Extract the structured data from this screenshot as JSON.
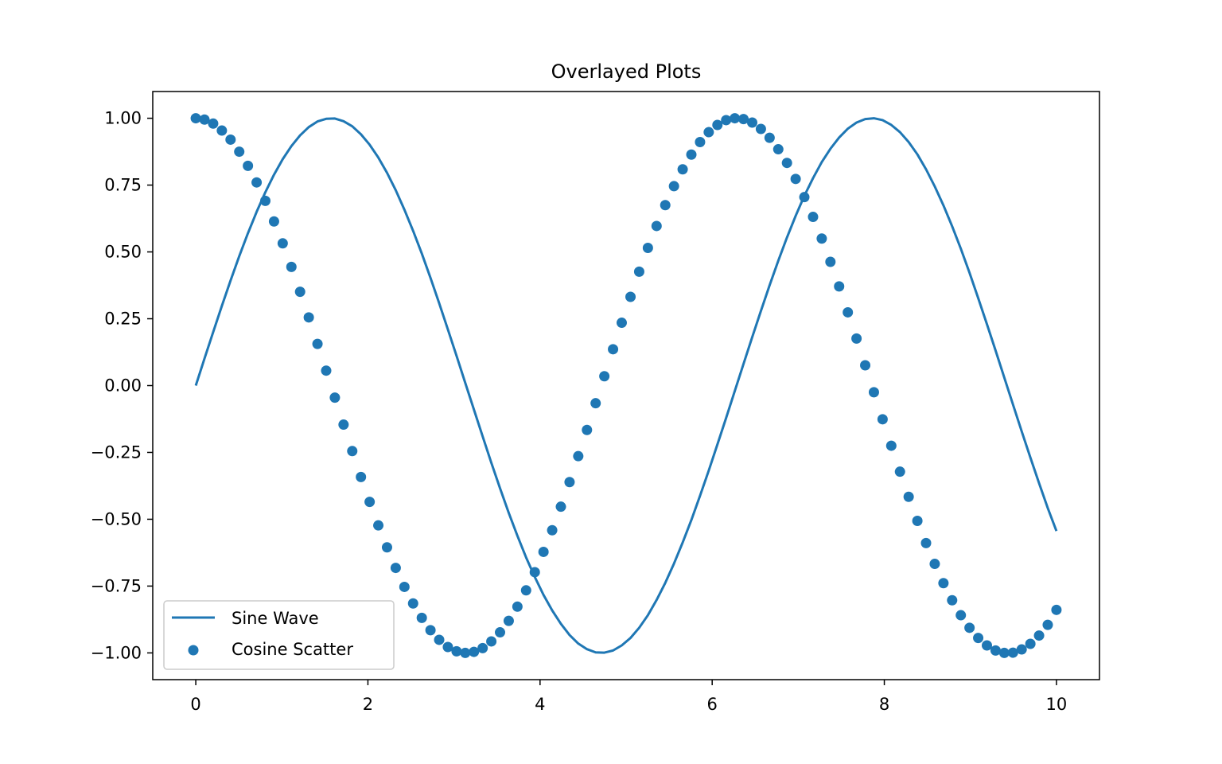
{
  "chart_data": {
    "type": "line",
    "title": "Overlayed Plots",
    "xlabel": "",
    "ylabel": "",
    "xlim": [
      -0.5,
      10.5
    ],
    "ylim": [
      -1.1,
      1.1
    ],
    "x_ticks": [
      0,
      2,
      4,
      6,
      8,
      10
    ],
    "x_tick_labels": [
      "0",
      "2",
      "4",
      "6",
      "8",
      "10"
    ],
    "y_ticks": [
      1.0,
      0.75,
      0.5,
      0.25,
      0.0,
      -0.25,
      -0.5,
      -0.75,
      -1.0
    ],
    "y_tick_labels": [
      "1.00",
      "0.75",
      "0.50",
      "0.25",
      "0.00",
      "−0.25",
      "−0.50",
      "−0.75",
      "−1.00"
    ],
    "grid": false,
    "legend_position": "lower-left",
    "series": [
      {
        "name": "Sine Wave",
        "kind": "line",
        "color": "#1f77b4",
        "x": [
          0.0,
          0.101,
          0.202,
          0.303,
          0.404,
          0.505,
          0.606,
          0.707,
          0.808,
          0.909,
          1.01,
          1.111,
          1.212,
          1.313,
          1.414,
          1.515,
          1.616,
          1.717,
          1.818,
          1.919,
          2.02,
          2.121,
          2.222,
          2.323,
          2.424,
          2.525,
          2.626,
          2.727,
          2.828,
          2.929,
          3.03,
          3.131,
          3.232,
          3.333,
          3.434,
          3.535,
          3.636,
          3.737,
          3.838,
          3.939,
          4.04,
          4.141,
          4.242,
          4.343,
          4.444,
          4.545,
          4.646,
          4.747,
          4.848,
          4.949,
          5.051,
          5.152,
          5.253,
          5.354,
          5.455,
          5.556,
          5.657,
          5.758,
          5.859,
          5.96,
          6.061,
          6.162,
          6.263,
          6.364,
          6.465,
          6.566,
          6.667,
          6.768,
          6.869,
          6.97,
          7.071,
          7.172,
          7.273,
          7.374,
          7.475,
          7.576,
          7.677,
          7.778,
          7.879,
          7.98,
          8.081,
          8.182,
          8.283,
          8.384,
          8.485,
          8.586,
          8.687,
          8.788,
          8.889,
          8.99,
          9.091,
          9.192,
          9.293,
          9.394,
          9.495,
          9.596,
          9.697,
          9.798,
          9.899,
          10.0
        ],
        "y": [
          0.0,
          0.101,
          0.2,
          0.298,
          0.393,
          0.484,
          0.57,
          0.65,
          0.723,
          0.789,
          0.847,
          0.896,
          0.936,
          0.967,
          0.988,
          0.998,
          0.999,
          0.989,
          0.97,
          0.94,
          0.901,
          0.853,
          0.796,
          0.731,
          0.658,
          0.579,
          0.494,
          0.403,
          0.308,
          0.21,
          0.111,
          0.01,
          -0.09,
          -0.19,
          -0.289,
          -0.384,
          -0.476,
          -0.562,
          -0.643,
          -0.716,
          -0.783,
          -0.841,
          -0.891,
          -0.933,
          -0.965,
          -0.986,
          -0.998,
          -0.999,
          -0.991,
          -0.972,
          -0.944,
          -0.906,
          -0.859,
          -0.802,
          -0.738,
          -0.666,
          -0.587,
          -0.503,
          -0.412,
          -0.318,
          -0.22,
          -0.121,
          -0.02,
          0.081,
          0.181,
          0.279,
          0.375,
          0.467,
          0.554,
          0.635,
          0.71,
          0.776,
          0.836,
          0.886,
          0.928,
          0.961,
          0.984,
          0.997,
          1.0,
          0.993,
          0.975,
          0.948,
          0.911,
          0.865,
          0.809,
          0.745,
          0.674,
          0.596,
          0.512,
          0.422,
          0.327,
          0.23,
          0.131,
          0.03,
          -0.071,
          -0.171,
          -0.269,
          -0.365,
          -0.458,
          -0.544
        ]
      },
      {
        "name": "Cosine Scatter",
        "kind": "scatter",
        "color": "#1f77b4",
        "x": [
          0.0,
          0.101,
          0.202,
          0.303,
          0.404,
          0.505,
          0.606,
          0.707,
          0.808,
          0.909,
          1.01,
          1.111,
          1.212,
          1.313,
          1.414,
          1.515,
          1.616,
          1.717,
          1.818,
          1.919,
          2.02,
          2.121,
          2.222,
          2.323,
          2.424,
          2.525,
          2.626,
          2.727,
          2.828,
          2.929,
          3.03,
          3.131,
          3.232,
          3.333,
          3.434,
          3.535,
          3.636,
          3.737,
          3.838,
          3.939,
          4.04,
          4.141,
          4.242,
          4.343,
          4.444,
          4.545,
          4.646,
          4.747,
          4.848,
          4.949,
          5.051,
          5.152,
          5.253,
          5.354,
          5.455,
          5.556,
          5.657,
          5.758,
          5.859,
          5.96,
          6.061,
          6.162,
          6.263,
          6.364,
          6.465,
          6.566,
          6.667,
          6.768,
          6.869,
          6.97,
          7.071,
          7.172,
          7.273,
          7.374,
          7.475,
          7.576,
          7.677,
          7.778,
          7.879,
          7.98,
          8.081,
          8.182,
          8.283,
          8.384,
          8.485,
          8.586,
          8.687,
          8.788,
          8.889,
          8.99,
          9.091,
          9.192,
          9.293,
          9.394,
          9.495,
          9.596,
          9.697,
          9.798,
          9.899,
          10.0
        ],
        "y": [
          1.0,
          0.995,
          0.98,
          0.954,
          0.92,
          0.875,
          0.822,
          0.76,
          0.691,
          0.614,
          0.532,
          0.444,
          0.351,
          0.255,
          0.156,
          0.056,
          -0.045,
          -0.146,
          -0.245,
          -0.342,
          -0.435,
          -0.523,
          -0.605,
          -0.682,
          -0.753,
          -0.815,
          -0.869,
          -0.915,
          -0.951,
          -0.978,
          -0.994,
          -1.0,
          -0.996,
          -0.982,
          -0.957,
          -0.923,
          -0.88,
          -0.827,
          -0.766,
          -0.698,
          -0.622,
          -0.541,
          -0.453,
          -0.361,
          -0.264,
          -0.166,
          -0.066,
          0.035,
          0.136,
          0.235,
          0.332,
          0.426,
          0.515,
          0.597,
          0.675,
          0.746,
          0.809,
          0.864,
          0.911,
          0.948,
          0.975,
          0.993,
          1.0,
          0.997,
          0.984,
          0.96,
          0.927,
          0.884,
          0.833,
          0.773,
          0.705,
          0.631,
          0.55,
          0.463,
          0.371,
          0.274,
          0.176,
          0.076,
          -0.025,
          -0.126,
          -0.225,
          -0.322,
          -0.416,
          -0.506,
          -0.589,
          -0.667,
          -0.739,
          -0.803,
          -0.859,
          -0.906,
          -0.944,
          -0.972,
          -0.991,
          -1.0,
          -0.999,
          -0.987,
          -0.966,
          -0.935,
          -0.895,
          -0.839
        ]
      }
    ]
  }
}
